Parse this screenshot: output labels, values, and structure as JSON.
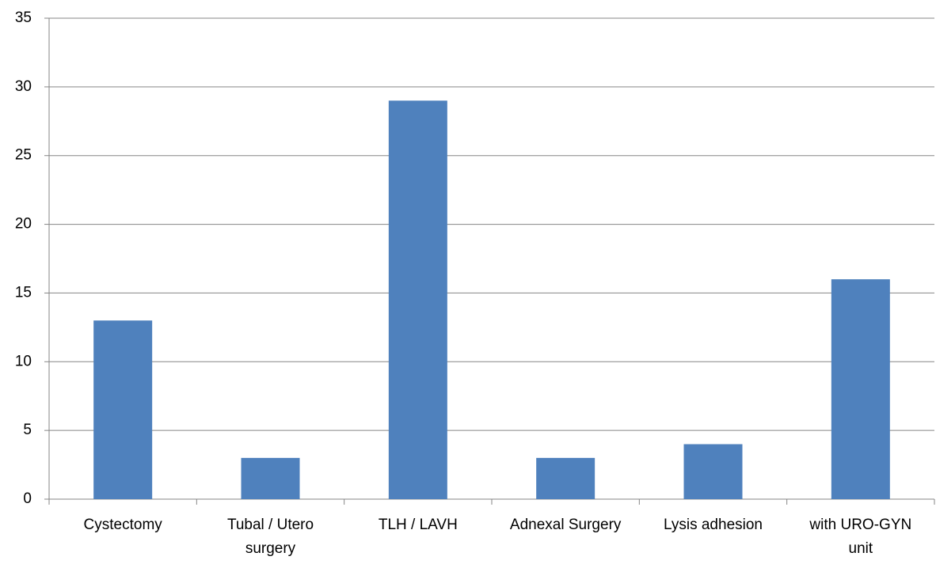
{
  "chart_data": {
    "type": "bar",
    "categories": [
      "Cystectomy",
      "Tubal / Utero surgery",
      "TLH / LAVH",
      "Adnexal Surgery",
      "Lysis adhesion",
      "with URO-GYN unit"
    ],
    "values": [
      13,
      3,
      29,
      3,
      4,
      16
    ],
    "color": "#4f81bd",
    "ylim": [
      0,
      35
    ],
    "yticks": [
      0,
      5,
      10,
      15,
      20,
      25,
      30,
      35
    ],
    "grid": true
  }
}
